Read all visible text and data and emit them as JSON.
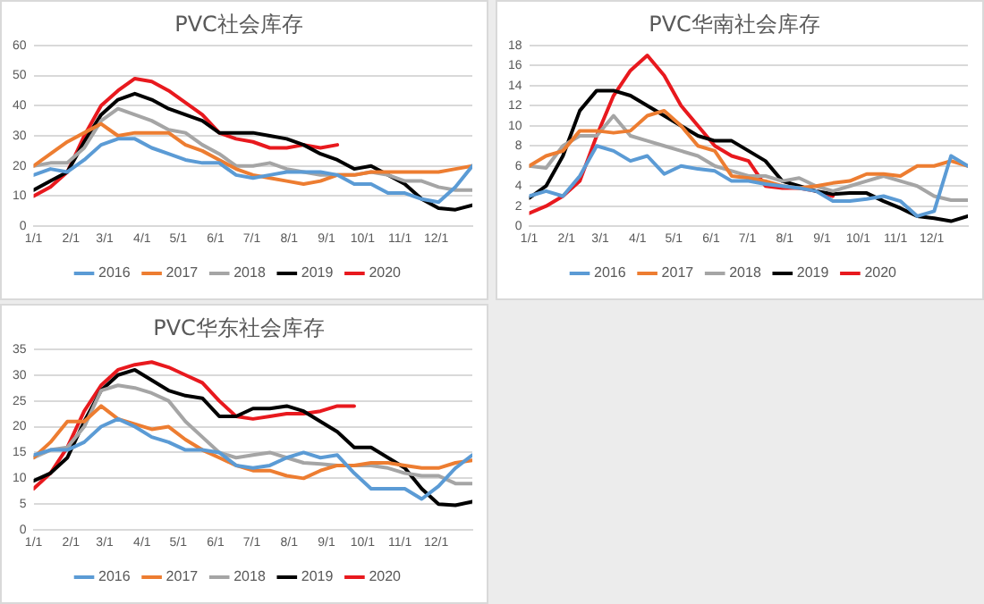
{
  "chart_data": [
    {
      "type": "line",
      "title": "PVC社会库存",
      "legend": "bottom",
      "grid": "y",
      "marker": "none",
      "line_style": "solid",
      "x": [
        "--01-01",
        "--01-15",
        "--01-29",
        "--02-12",
        "--02-26",
        "--03-12",
        "--03-26",
        "--04-09",
        "--04-23",
        "--05-07",
        "--05-21",
        "--06-04",
        "--06-18",
        "--07-02",
        "--07-16",
        "--07-30",
        "--08-13",
        "--08-27",
        "--09-10",
        "--09-24",
        "--10-08",
        "--10-22",
        "--11-05",
        "--11-19",
        "--12-03",
        "--12-17",
        "--12-31"
      ],
      "xlim": [
        "--01-01",
        "--12-31"
      ],
      "xticks": [
        {
          "value": "--01-01",
          "label": "1/1"
        },
        {
          "value": "--02-01",
          "label": "2/1"
        },
        {
          "value": "--03-01",
          "label": "3/1"
        },
        {
          "value": "--04-01",
          "label": "4/1"
        },
        {
          "value": "--05-01",
          "label": "5/1"
        },
        {
          "value": "--06-01",
          "label": "6/1"
        },
        {
          "value": "--07-01",
          "label": "7/1"
        },
        {
          "value": "--08-01",
          "label": "8/1"
        },
        {
          "value": "--09-01",
          "label": "9/1"
        },
        {
          "value": "--10-01",
          "label": "10/1"
        },
        {
          "value": "--11-01",
          "label": "11/1"
        },
        {
          "value": "--12-01",
          "label": "12/1"
        }
      ],
      "ylim": [
        0,
        60
      ],
      "yticks": [
        0,
        10,
        20,
        30,
        40,
        50,
        60
      ],
      "series": [
        {
          "name": "2016",
          "color": "#5b9bd5",
          "values": [
            17,
            19,
            18,
            22,
            27,
            29,
            29,
            26,
            24,
            22,
            21,
            21,
            17,
            16,
            17,
            18,
            18,
            18,
            17,
            14,
            14,
            11,
            11,
            9,
            8,
            13,
            20
          ]
        },
        {
          "name": "2017",
          "color": "#ed7d31",
          "values": [
            20,
            24,
            28,
            31,
            34,
            30,
            31,
            31,
            31,
            27,
            25,
            22,
            19,
            17,
            16,
            15,
            14,
            15,
            17,
            17,
            18,
            18,
            18,
            18,
            18,
            19,
            20
          ]
        },
        {
          "name": "2018",
          "color": "#a5a5a5",
          "values": [
            20,
            21,
            21,
            26,
            35,
            39,
            37,
            35,
            32,
            31,
            27,
            24,
            20,
            20,
            21,
            19,
            18,
            17,
            17,
            17,
            18,
            17,
            15,
            15,
            13,
            12,
            12
          ]
        },
        {
          "name": "2019",
          "color": "#000000",
          "values": [
            12,
            15,
            18,
            28,
            37,
            42,
            44,
            42,
            39,
            37,
            35,
            31,
            31,
            31,
            30,
            29,
            27,
            24,
            22,
            19,
            20,
            17,
            14,
            9,
            6,
            5.5,
            7
          ]
        },
        {
          "name": "2020",
          "color": "#e8191e",
          "values": [
            10,
            13,
            18,
            30,
            40,
            45,
            49,
            48,
            45,
            41,
            37,
            31,
            29,
            28,
            26,
            26,
            27,
            26,
            27,
            null,
            null,
            null,
            null,
            null,
            null,
            null,
            null
          ]
        }
      ]
    },
    {
      "type": "line",
      "title": "PVC华南社会库存",
      "legend": "bottom",
      "grid": "y",
      "marker": "none",
      "line_style": "solid",
      "x": [
        "--01-01",
        "--01-15",
        "--01-29",
        "--02-12",
        "--02-26",
        "--03-12",
        "--03-26",
        "--04-09",
        "--04-23",
        "--05-07",
        "--05-21",
        "--06-04",
        "--06-18",
        "--07-02",
        "--07-16",
        "--07-30",
        "--08-13",
        "--08-27",
        "--09-10",
        "--09-24",
        "--10-08",
        "--10-22",
        "--11-05",
        "--11-19",
        "--12-03",
        "--12-17",
        "--12-31"
      ],
      "xlim": [
        "--01-01",
        "--12-31"
      ],
      "xticks": [
        {
          "value": "--01-01",
          "label": "1/1"
        },
        {
          "value": "--02-01",
          "label": "2/1"
        },
        {
          "value": "--03-01",
          "label": "3/1"
        },
        {
          "value": "--04-01",
          "label": "4/1"
        },
        {
          "value": "--05-01",
          "label": "5/1"
        },
        {
          "value": "--06-01",
          "label": "6/1"
        },
        {
          "value": "--07-01",
          "label": "7/1"
        },
        {
          "value": "--08-01",
          "label": "8/1"
        },
        {
          "value": "--09-01",
          "label": "9/1"
        },
        {
          "value": "--10-01",
          "label": "10/1"
        },
        {
          "value": "--11-01",
          "label": "11/1"
        },
        {
          "value": "--12-01",
          "label": "12/1"
        }
      ],
      "ylim": [
        0,
        18
      ],
      "yticks": [
        0,
        2,
        4,
        6,
        8,
        10,
        12,
        14,
        16,
        18
      ],
      "series": [
        {
          "name": "2016",
          "color": "#5b9bd5",
          "values": [
            3,
            3.5,
            3,
            5,
            8,
            7.5,
            6.5,
            7,
            5.2,
            6,
            5.7,
            5.5,
            4.5,
            4.5,
            4.2,
            4,
            3.8,
            3.5,
            2.5,
            2.5,
            2.7,
            3,
            2.5,
            1,
            1.5,
            7,
            6
          ]
        },
        {
          "name": "2017",
          "color": "#ed7d31",
          "values": [
            6,
            7,
            7.5,
            9.5,
            9.5,
            9.3,
            9.5,
            11,
            11.5,
            10,
            8,
            7.5,
            5,
            4.8,
            4.5,
            4,
            3.8,
            4,
            4.3,
            4.5,
            5.2,
            5.2,
            5,
            6,
            6,
            6.5,
            6
          ]
        },
        {
          "name": "2018",
          "color": "#a5a5a5",
          "values": [
            6,
            5.8,
            8,
            9,
            9,
            11,
            9,
            8.5,
            8,
            7.5,
            7,
            6,
            5.5,
            5,
            5,
            4.5,
            4.8,
            4,
            3.5,
            4,
            4.5,
            5,
            4.5,
            4,
            3,
            2.6,
            2.6
          ]
        },
        {
          "name": "2019",
          "color": "#000000",
          "values": [
            2.8,
            4,
            7,
            11.5,
            13.5,
            13.5,
            13,
            12,
            11,
            10,
            9,
            8.5,
            8.5,
            7.5,
            6.5,
            4.5,
            4,
            3.5,
            3.2,
            3.3,
            3.3,
            2.5,
            1.8,
            1,
            0.8,
            0.5,
            1
          ]
        },
        {
          "name": "2020",
          "color": "#e8191e",
          "values": [
            1.3,
            2,
            3,
            4.5,
            9,
            13,
            15.5,
            17,
            15,
            12,
            10,
            8,
            7,
            6.5,
            4,
            3.8,
            3.8,
            3.5,
            3,
            null,
            null,
            null,
            null,
            null,
            null,
            null,
            null
          ]
        }
      ]
    },
    {
      "type": "line",
      "title": "PVC华东社会库存",
      "legend": "bottom",
      "grid": "y",
      "marker": "none",
      "line_style": "solid",
      "x": [
        "--01-01",
        "--01-15",
        "--01-29",
        "--02-12",
        "--02-26",
        "--03-12",
        "--03-26",
        "--04-09",
        "--04-23",
        "--05-07",
        "--05-21",
        "--06-04",
        "--06-18",
        "--07-02",
        "--07-16",
        "--07-30",
        "--08-13",
        "--08-27",
        "--09-10",
        "--09-24",
        "--10-08",
        "--10-22",
        "--11-05",
        "--11-19",
        "--12-03",
        "--12-17",
        "--12-31"
      ],
      "xlim": [
        "--01-01",
        "--12-31"
      ],
      "xticks": [
        {
          "value": "--01-01",
          "label": "1/1"
        },
        {
          "value": "--02-01",
          "label": "2/1"
        },
        {
          "value": "--03-01",
          "label": "3/1"
        },
        {
          "value": "--04-01",
          "label": "4/1"
        },
        {
          "value": "--05-01",
          "label": "5/1"
        },
        {
          "value": "--06-01",
          "label": "6/1"
        },
        {
          "value": "--07-01",
          "label": "7/1"
        },
        {
          "value": "--08-01",
          "label": "8/1"
        },
        {
          "value": "--09-01",
          "label": "9/1"
        },
        {
          "value": "--10-01",
          "label": "10/1"
        },
        {
          "value": "--11-01",
          "label": "11/1"
        },
        {
          "value": "--12-01",
          "label": "12/1"
        }
      ],
      "ylim": [
        0,
        35
      ],
      "yticks": [
        0,
        5,
        10,
        15,
        20,
        25,
        30,
        35
      ],
      "series": [
        {
          "name": "2016",
          "color": "#5b9bd5",
          "values": [
            14.5,
            15.5,
            15.5,
            17,
            20,
            21.5,
            20,
            18,
            17,
            15.5,
            15.5,
            15,
            12.5,
            12,
            12.5,
            14,
            15,
            14,
            14.5,
            11,
            8,
            8,
            8,
            6,
            8.5,
            12,
            14.5
          ]
        },
        {
          "name": "2017",
          "color": "#ed7d31",
          "values": [
            14,
            17,
            21,
            21,
            24,
            21.5,
            20.5,
            19.5,
            20,
            17.5,
            15.5,
            14,
            12.5,
            11.5,
            11.5,
            10.5,
            10,
            11.5,
            12.5,
            12.5,
            13,
            13,
            12.5,
            12,
            12,
            13,
            13.5
          ]
        },
        {
          "name": "2018",
          "color": "#a5a5a5",
          "values": [
            14,
            15.5,
            16,
            20,
            27,
            28,
            27.5,
            26.5,
            25,
            21,
            18,
            15,
            14,
            14.5,
            15,
            14,
            13,
            12.8,
            12.5,
            12.5,
            12.5,
            12,
            11,
            10.5,
            10.5,
            9,
            9
          ]
        },
        {
          "name": "2019",
          "color": "#000000",
          "values": [
            9.5,
            11,
            14,
            21,
            27,
            30,
            31,
            29,
            27,
            26,
            25.5,
            22,
            22,
            23.5,
            23.5,
            24,
            23,
            21,
            19,
            16,
            16,
            14,
            12,
            8,
            5,
            4.8,
            5.5
          ]
        },
        {
          "name": "2020",
          "color": "#e8191e",
          "values": [
            8,
            11,
            16,
            23,
            28,
            31,
            32,
            32.5,
            31.5,
            30,
            28.5,
            25,
            22,
            21.5,
            22,
            22.5,
            22.5,
            23,
            24,
            24,
            null,
            null,
            null,
            null,
            null,
            null,
            null
          ]
        }
      ]
    }
  ]
}
